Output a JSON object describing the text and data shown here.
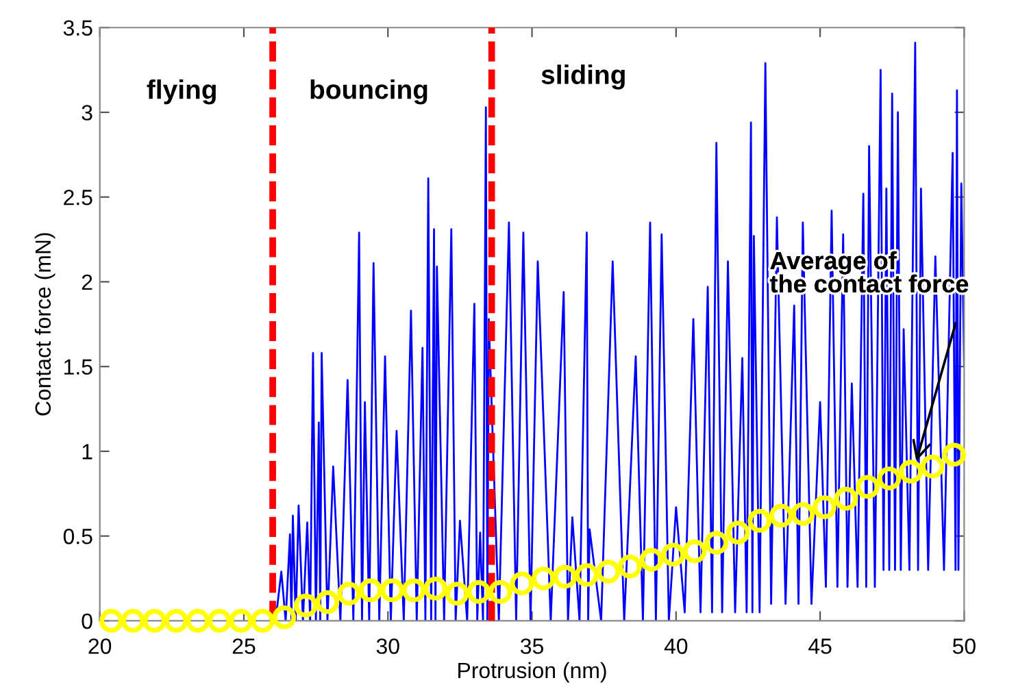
{
  "chart_data": {
    "type": "line",
    "xlabel": "Protrusion (nm)",
    "ylabel": "Contact force (mN)",
    "xlim": [
      20,
      50
    ],
    "ylim": [
      0,
      3.5
    ],
    "xticks": [
      20,
      25,
      30,
      35,
      40,
      45,
      50
    ],
    "yticks": [
      0,
      0.5,
      1,
      1.5,
      2,
      2.5,
      3,
      3.5
    ],
    "grid": false,
    "series": [
      {
        "color": "#0000ff",
        "marker": "none",
        "line_style": "solid",
        "x": [
          26.1,
          26.3,
          26.45,
          26.6,
          26.65,
          26.7,
          26.8,
          26.9,
          27.05,
          27.2,
          27.3,
          27.4,
          27.5,
          27.6,
          27.65,
          27.7,
          27.9,
          28.1,
          28.35,
          28.6,
          28.8,
          29.0,
          29.1,
          29.2,
          29.35,
          29.5,
          29.7,
          29.9,
          30.1,
          30.3,
          30.55,
          30.8,
          31.0,
          31.2,
          31.3,
          31.4,
          31.5,
          31.6,
          31.65,
          31.7,
          31.95,
          32.2,
          32.35,
          32.5,
          32.75,
          33.0,
          33.1,
          33.2,
          33.3,
          33.4,
          33.45,
          33.5,
          33.85,
          34.2,
          34.45,
          34.7,
          34.95,
          35.2,
          35.65,
          36.1,
          36.25,
          36.4,
          36.65,
          36.9,
          36.95,
          37.0,
          37.4,
          37.8,
          38.2,
          38.6,
          38.85,
          39.1,
          39.3,
          39.5,
          39.75,
          40.0,
          40.3,
          40.6,
          40.85,
          41.1,
          41.25,
          41.4,
          41.6,
          41.8,
          42.05,
          42.3,
          42.45,
          42.6,
          42.65,
          42.7,
          42.9,
          43.1,
          43.3,
          43.5,
          43.8,
          44.1,
          44.25,
          44.4,
          44.7,
          45.0,
          45.2,
          45.4,
          45.6,
          45.8,
          45.95,
          46.1,
          46.3,
          46.5,
          46.6,
          46.7,
          46.9,
          47.1,
          47.2,
          47.3,
          47.4,
          47.5,
          47.6,
          47.7,
          47.8,
          47.9,
          48.1,
          48.3,
          48.4,
          48.5,
          48.75,
          49.0,
          49.3,
          49.6,
          49.7,
          49.75,
          49.8,
          49.9,
          50.0
        ],
        "values": [
          0,
          0.29,
          0,
          0.51,
          0,
          0.62,
          0,
          0.68,
          0,
          0.58,
          0,
          1.58,
          0,
          1.17,
          0,
          1.58,
          0,
          0.91,
          0,
          1.42,
          0,
          2.29,
          0,
          1.29,
          0,
          2.11,
          0,
          1.56,
          0,
          1.12,
          0,
          1.83,
          0,
          1.61,
          0,
          2.61,
          0,
          2.31,
          0,
          2.09,
          0,
          2.31,
          0,
          0.59,
          0,
          1.87,
          0,
          0.52,
          0,
          3.03,
          0,
          1.78,
          0,
          2.35,
          0,
          2.29,
          0,
          2.12,
          0,
          1.94,
          0,
          0.61,
          0,
          2.29,
          0,
          0.54,
          0,
          2.12,
          0,
          1.56,
          0,
          2.35,
          0,
          2.28,
          0,
          0.67,
          0.05,
          1.78,
          0.05,
          1.97,
          0.05,
          2.82,
          0.05,
          2.12,
          0.05,
          1.55,
          0.05,
          2.94,
          0.05,
          2.27,
          0.05,
          3.29,
          0.1,
          2.38,
          0.1,
          1.86,
          0.1,
          2.35,
          0.1,
          1.29,
          0.2,
          2.42,
          0.2,
          2.28,
          0.2,
          1.4,
          0.2,
          2.52,
          0.2,
          2.8,
          0.2,
          3.25,
          0.3,
          2.55,
          0.3,
          3.11,
          0.3,
          3.0,
          0.3,
          1.72,
          0.3,
          3.41,
          0.3,
          2.55,
          0.3,
          2.15,
          0.3,
          2.76,
          0.3,
          3.13,
          0.3,
          2.58,
          1.5
        ]
      },
      {
        "type": "scatter",
        "color": "#ffff00",
        "marker": "circle",
        "x": [
          20.4,
          21.15,
          21.9,
          22.65,
          23.4,
          24.15,
          24.9,
          25.65,
          26.4,
          27.15,
          27.9,
          28.65,
          29.4,
          30.15,
          30.9,
          31.65,
          32.4,
          33.15,
          33.9,
          34.65,
          35.4,
          36.15,
          36.9,
          37.65,
          38.4,
          39.15,
          39.9,
          40.65,
          41.4,
          42.15,
          42.9,
          43.65,
          44.4,
          45.15,
          45.9,
          46.65,
          47.4,
          48.15,
          48.9,
          49.65
        ],
        "values": [
          0,
          0,
          0,
          0,
          0,
          0,
          0,
          0,
          0.02,
          0.09,
          0.11,
          0.16,
          0.18,
          0.18,
          0.18,
          0.19,
          0.16,
          0.17,
          0.17,
          0.22,
          0.25,
          0.26,
          0.27,
          0.29,
          0.32,
          0.36,
          0.39,
          0.41,
          0.46,
          0.52,
          0.59,
          0.62,
          0.63,
          0.67,
          0.72,
          0.79,
          0.84,
          0.88,
          0.91,
          0.98
        ]
      }
    ],
    "ref_lines": [
      {
        "axis": "x",
        "value": 26,
        "color": "#ff0000",
        "line_style": "dashed"
      },
      {
        "axis": "x",
        "value": 33.6,
        "color": "#ff0000",
        "line_style": "dashed"
      }
    ],
    "annotations": [
      "flying",
      "bouncing",
      "sliding",
      {
        "text": "Average of\nthe contact force",
        "x": 48.3,
        "y": 0.92
      }
    ]
  }
}
